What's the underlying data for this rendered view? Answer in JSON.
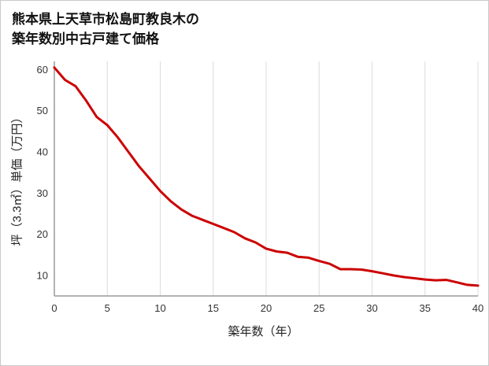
{
  "title": {
    "line1": "熊本県上天草市松島町教良木の",
    "line2": "築年数別中古戸建て価格"
  },
  "chart_data": {
    "type": "line",
    "title": "熊本県上天草市松島町教良木の築年数別中古戸建て価格",
    "xlabel": "築年数（年）",
    "ylabel": "坪（3.3㎡）単価（万円）",
    "x": [
      0,
      1,
      2,
      3,
      4,
      5,
      6,
      7,
      8,
      9,
      10,
      11,
      12,
      13,
      14,
      15,
      16,
      17,
      18,
      19,
      20,
      21,
      22,
      23,
      24,
      25,
      26,
      27,
      28,
      29,
      30,
      31,
      32,
      33,
      34,
      35,
      36,
      37,
      38,
      39,
      40
    ],
    "values": [
      60.5,
      57.5,
      56,
      52.5,
      48.5,
      46.5,
      43.5,
      40,
      36.5,
      33.5,
      30.5,
      28,
      26,
      24.5,
      23.5,
      22.5,
      21.5,
      20.5,
      19,
      18,
      16.5,
      15.8,
      15.5,
      14.5,
      14.3,
      13.5,
      12.8,
      11.5,
      11.5,
      11.4,
      11,
      10.5,
      10,
      9.6,
      9.3,
      9,
      8.8,
      8.9,
      8.3,
      7.7,
      7.5
    ],
    "xlim": [
      0,
      40
    ],
    "ylim": [
      5,
      62
    ],
    "xticks": [
      0,
      5,
      10,
      15,
      20,
      25,
      30,
      35,
      40
    ],
    "yticks": [
      10,
      20,
      30,
      40,
      50,
      60
    ],
    "line_color": "#cc0000",
    "grid": "vertical-only",
    "legend": "none",
    "colors": {
      "grid": "#dcdcdc",
      "axis": "#9a9a9a",
      "tick_text": "#333333",
      "border": "#c9c9c9"
    }
  }
}
